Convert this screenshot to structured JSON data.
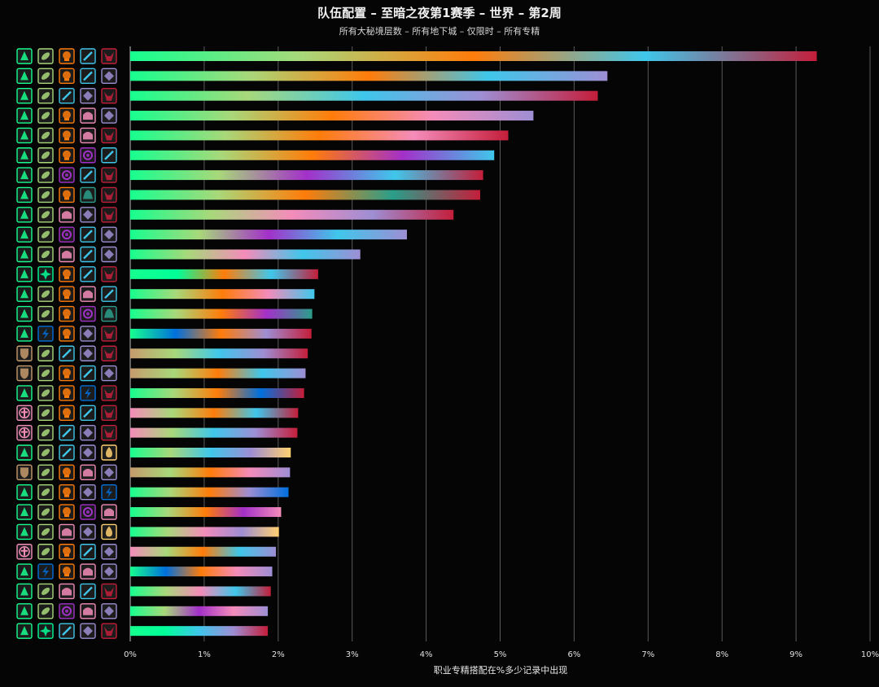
{
  "title": "队伍配置 – 至暗之夜第1赛季 – 世界 – 第2周",
  "subtitle": "所有大秘境层数 – 所有地下城 – 仅限时 – 所有专精",
  "chart_data": {
    "type": "bar",
    "orientation": "horizontal",
    "xlabel": "职业专精搭配在%多少记录中出现",
    "xlim": [
      0,
      10
    ],
    "xticks": [
      "0%",
      "1%",
      "2%",
      "3%",
      "4%",
      "5%",
      "6%",
      "7%",
      "8%",
      "9%",
      "10%"
    ],
    "grid": true,
    "values": [
      9.28,
      6.45,
      6.32,
      5.45,
      5.11,
      4.92,
      4.77,
      4.73,
      4.37,
      3.74,
      3.11,
      2.54,
      2.49,
      2.46,
      2.45,
      2.4,
      2.37,
      2.35,
      2.27,
      2.26,
      2.17,
      2.16,
      2.14,
      2.04,
      2.01,
      1.97,
      1.92,
      1.9,
      1.86,
      1.86
    ],
    "composition_icons": [
      [
        "fire",
        "leaf",
        "skull",
        "blade",
        "demon"
      ],
      [
        "fire",
        "leaf",
        "skull",
        "blade",
        "rune"
      ],
      [
        "fire",
        "leaf",
        "blade",
        "rune",
        "demon"
      ],
      [
        "fire",
        "leaf",
        "skull",
        "helm",
        "rune"
      ],
      [
        "fire",
        "leaf",
        "skull",
        "helm",
        "demon"
      ],
      [
        "fire",
        "leaf",
        "skull",
        "void",
        "blade"
      ],
      [
        "fire",
        "leaf",
        "void",
        "blade",
        "demon"
      ],
      [
        "fire",
        "leaf",
        "skull",
        "beast",
        "demon"
      ],
      [
        "fire",
        "leaf",
        "helm",
        "rune",
        "demon"
      ],
      [
        "fire",
        "leaf",
        "void",
        "blade",
        "rune"
      ],
      [
        "fire",
        "leaf",
        "helm",
        "blade",
        "rune"
      ],
      [
        "fire",
        "burst",
        "skull",
        "blade",
        "demon"
      ],
      [
        "fire",
        "leaf",
        "skull",
        "helm",
        "blade"
      ],
      [
        "fire",
        "leaf",
        "skull",
        "void",
        "beast"
      ],
      [
        "fire",
        "bolt",
        "skull",
        "rune",
        "demon"
      ],
      [
        "shield",
        "leaf",
        "blade",
        "rune",
        "demon"
      ],
      [
        "shield",
        "leaf",
        "skull",
        "blade",
        "rune"
      ],
      [
        "fire",
        "leaf",
        "skull",
        "storm",
        "demon"
      ],
      [
        "holy",
        "leaf",
        "skull",
        "blade",
        "demon"
      ],
      [
        "holy",
        "leaf",
        "blade",
        "rune",
        "demon"
      ],
      [
        "fire",
        "leaf",
        "blade",
        "rune",
        "flame"
      ],
      [
        "shield",
        "leaf",
        "skull",
        "helm",
        "rune"
      ],
      [
        "fire",
        "leaf",
        "skull",
        "rune",
        "storm"
      ],
      [
        "fire",
        "leaf",
        "skull",
        "void",
        "helm"
      ],
      [
        "fire",
        "leaf",
        "helm",
        "rune",
        "flame"
      ],
      [
        "holy",
        "leaf",
        "skull",
        "blade",
        "rune"
      ],
      [
        "fire",
        "bolt",
        "skull",
        "helm",
        "rune"
      ],
      [
        "fire",
        "leaf",
        "helm",
        "blade",
        "demon"
      ],
      [
        "fire",
        "leaf",
        "void",
        "helm",
        "rune"
      ],
      [
        "fire",
        "burst",
        "blade",
        "rune",
        "demon"
      ]
    ]
  },
  "colors": {
    "background": "#050505",
    "gridline": "#5a5a5a",
    "text": "#e0e0e0",
    "fire": "#16ff8f",
    "leaf": "#a8d87a",
    "skull": "#ff7c0a",
    "blade": "#3fc7eb",
    "rune": "#9e8ed4",
    "demon": "#c41e3a",
    "helm": "#f48cba",
    "void": "#a330c9",
    "beast": "#2a9e8a",
    "burst": "#00ff98",
    "bolt": "#0070dd",
    "shield": "#c69b6d",
    "storm": "#0070dd",
    "holy": "#f48cba",
    "flame": "#ffd070"
  }
}
